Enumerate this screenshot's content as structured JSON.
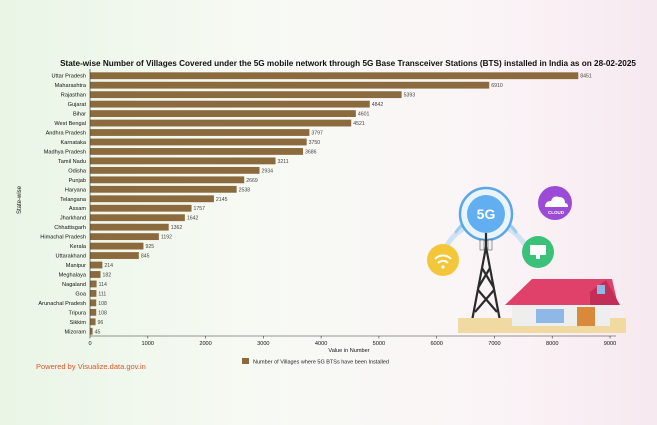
{
  "chart_data": {
    "type": "bar",
    "orientation": "horizontal",
    "title": "State-wise Number of Villages Covered under the 5G mobile network through 5G Base Transceiver Stations (BTS) installed in India as on 28-02-2025",
    "xlabel": "Value in Number",
    "ylabel": "State-wise",
    "xlim": [
      0,
      9000
    ],
    "xticks": [
      0,
      1000,
      2000,
      3000,
      4000,
      5000,
      6000,
      7000,
      8000,
      9000
    ],
    "grid": false,
    "legend_position": "bottom",
    "bar_color": "#8b6a3e",
    "categories": [
      "Uttar Pradesh",
      "Maharashtra",
      "Rajasthan",
      "Gujarat",
      "Bihar",
      "West Bengal",
      "Andhra Pradesh",
      "Karnataka",
      "Madhya Pradesh",
      "Tamil Nadu",
      "Odisha",
      "Punjab",
      "Haryana",
      "Telangana",
      "Assam",
      "Jharkhand",
      "Chhattisgarh",
      "Himachal Pradesh",
      "Kerala",
      "Uttarakhand",
      "Manipur",
      "Meghalaya",
      "Nagaland",
      "Goa",
      "Arunachal Pradesh",
      "Tripura",
      "Sikkim",
      "Mizoram"
    ],
    "series": [
      {
        "name": "Number of Villages where 5G BTSs have been Installed",
        "values": [
          8451,
          6910,
          5393,
          4842,
          4601,
          4521,
          3797,
          3750,
          3686,
          3211,
          2934,
          2669,
          2538,
          2145,
          1757,
          1642,
          1362,
          1192,
          925,
          845,
          214,
          182,
          114,
          111,
          108,
          108,
          96,
          45
        ]
      }
    ]
  },
  "illustration": {
    "badge_5g": "5G",
    "cloud_label": "CLOUD"
  },
  "footer": "Powered by Visualize.data.gov.in"
}
